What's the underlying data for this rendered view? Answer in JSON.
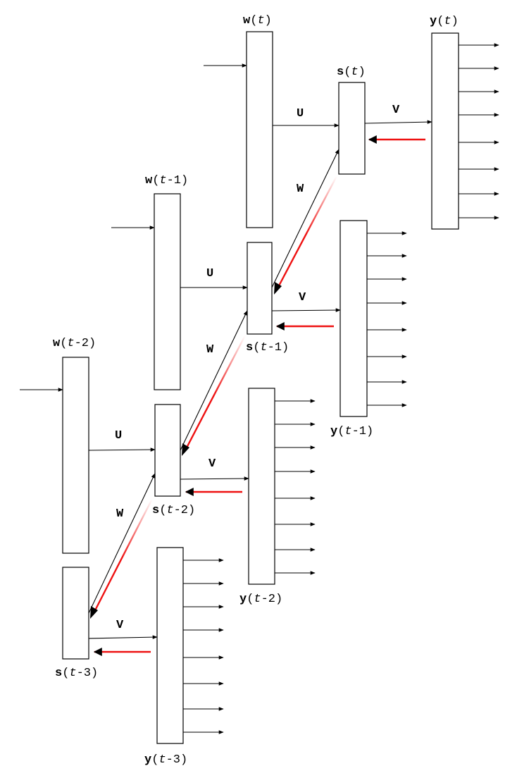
{
  "diagram": {
    "edge_labels": {
      "input_to_state": "U",
      "state_to_output": "V",
      "recurrent": "W"
    },
    "timesteps": [
      {
        "key": "t",
        "input_label": {
          "var": "w",
          "open": "(",
          "time": "t",
          "close": ")"
        },
        "state_label": {
          "var": "s",
          "open": "(",
          "time": "t",
          "close": ")"
        },
        "output_label": {
          "var": "y",
          "open": "(",
          "time": "t",
          "close": ")"
        }
      },
      {
        "key": "t-1",
        "input_label": {
          "var": "w",
          "open": "(",
          "time": "t",
          "close": "-1)"
        },
        "state_label": {
          "var": "s",
          "open": "(",
          "time": "t",
          "close": "-1)"
        },
        "output_label": {
          "var": "y",
          "open": "(",
          "time": "t",
          "close": "-1)"
        }
      },
      {
        "key": "t-2",
        "input_label": {
          "var": "w",
          "open": "(",
          "time": "t",
          "close": "-2)"
        },
        "state_label": {
          "var": "s",
          "open": "(",
          "time": "t",
          "close": "-2)"
        },
        "output_label": {
          "var": "y",
          "open": "(",
          "time": "t",
          "close": "-2)"
        }
      },
      {
        "key": "t-3",
        "state_label": {
          "var": "s",
          "open": "(",
          "time": "t",
          "close": "-3)"
        },
        "output_label": {
          "var": "y",
          "open": "(",
          "time": "t",
          "close": "-3)"
        }
      }
    ],
    "colors": {
      "forward": "#000000",
      "backprop": "#e11111"
    }
  }
}
